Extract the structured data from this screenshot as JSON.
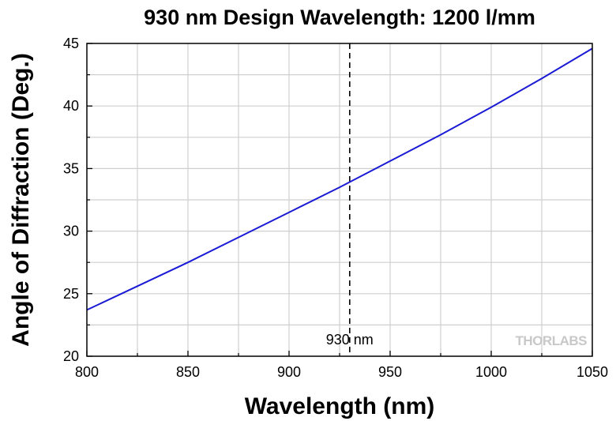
{
  "chart_data": {
    "type": "line",
    "title": "930 nm Design Wavelength: 1200 l/mm",
    "xlabel": "Wavelength (nm)",
    "ylabel": "Angle of Diffraction (Deg.)",
    "xlim": [
      800,
      1050
    ],
    "ylim": [
      20,
      45
    ],
    "x_ticks": [
      800,
      850,
      900,
      950,
      1000,
      1050
    ],
    "y_ticks": [
      20,
      25,
      30,
      35,
      40,
      45
    ],
    "grid": true,
    "series": [
      {
        "color": "#1a1ad6",
        "x": [
          800,
          825,
          850,
          875,
          900,
          925,
          950,
          975,
          1000,
          1025,
          1050
        ],
        "y": [
          23.7,
          25.6,
          27.5,
          29.5,
          31.5,
          33.5,
          35.6,
          37.7,
          39.9,
          42.2,
          44.6
        ]
      }
    ],
    "annotations": [
      {
        "text": "930 nm",
        "x": 930,
        "style": "dashed-vline"
      }
    ],
    "logo": "THORLABS"
  }
}
